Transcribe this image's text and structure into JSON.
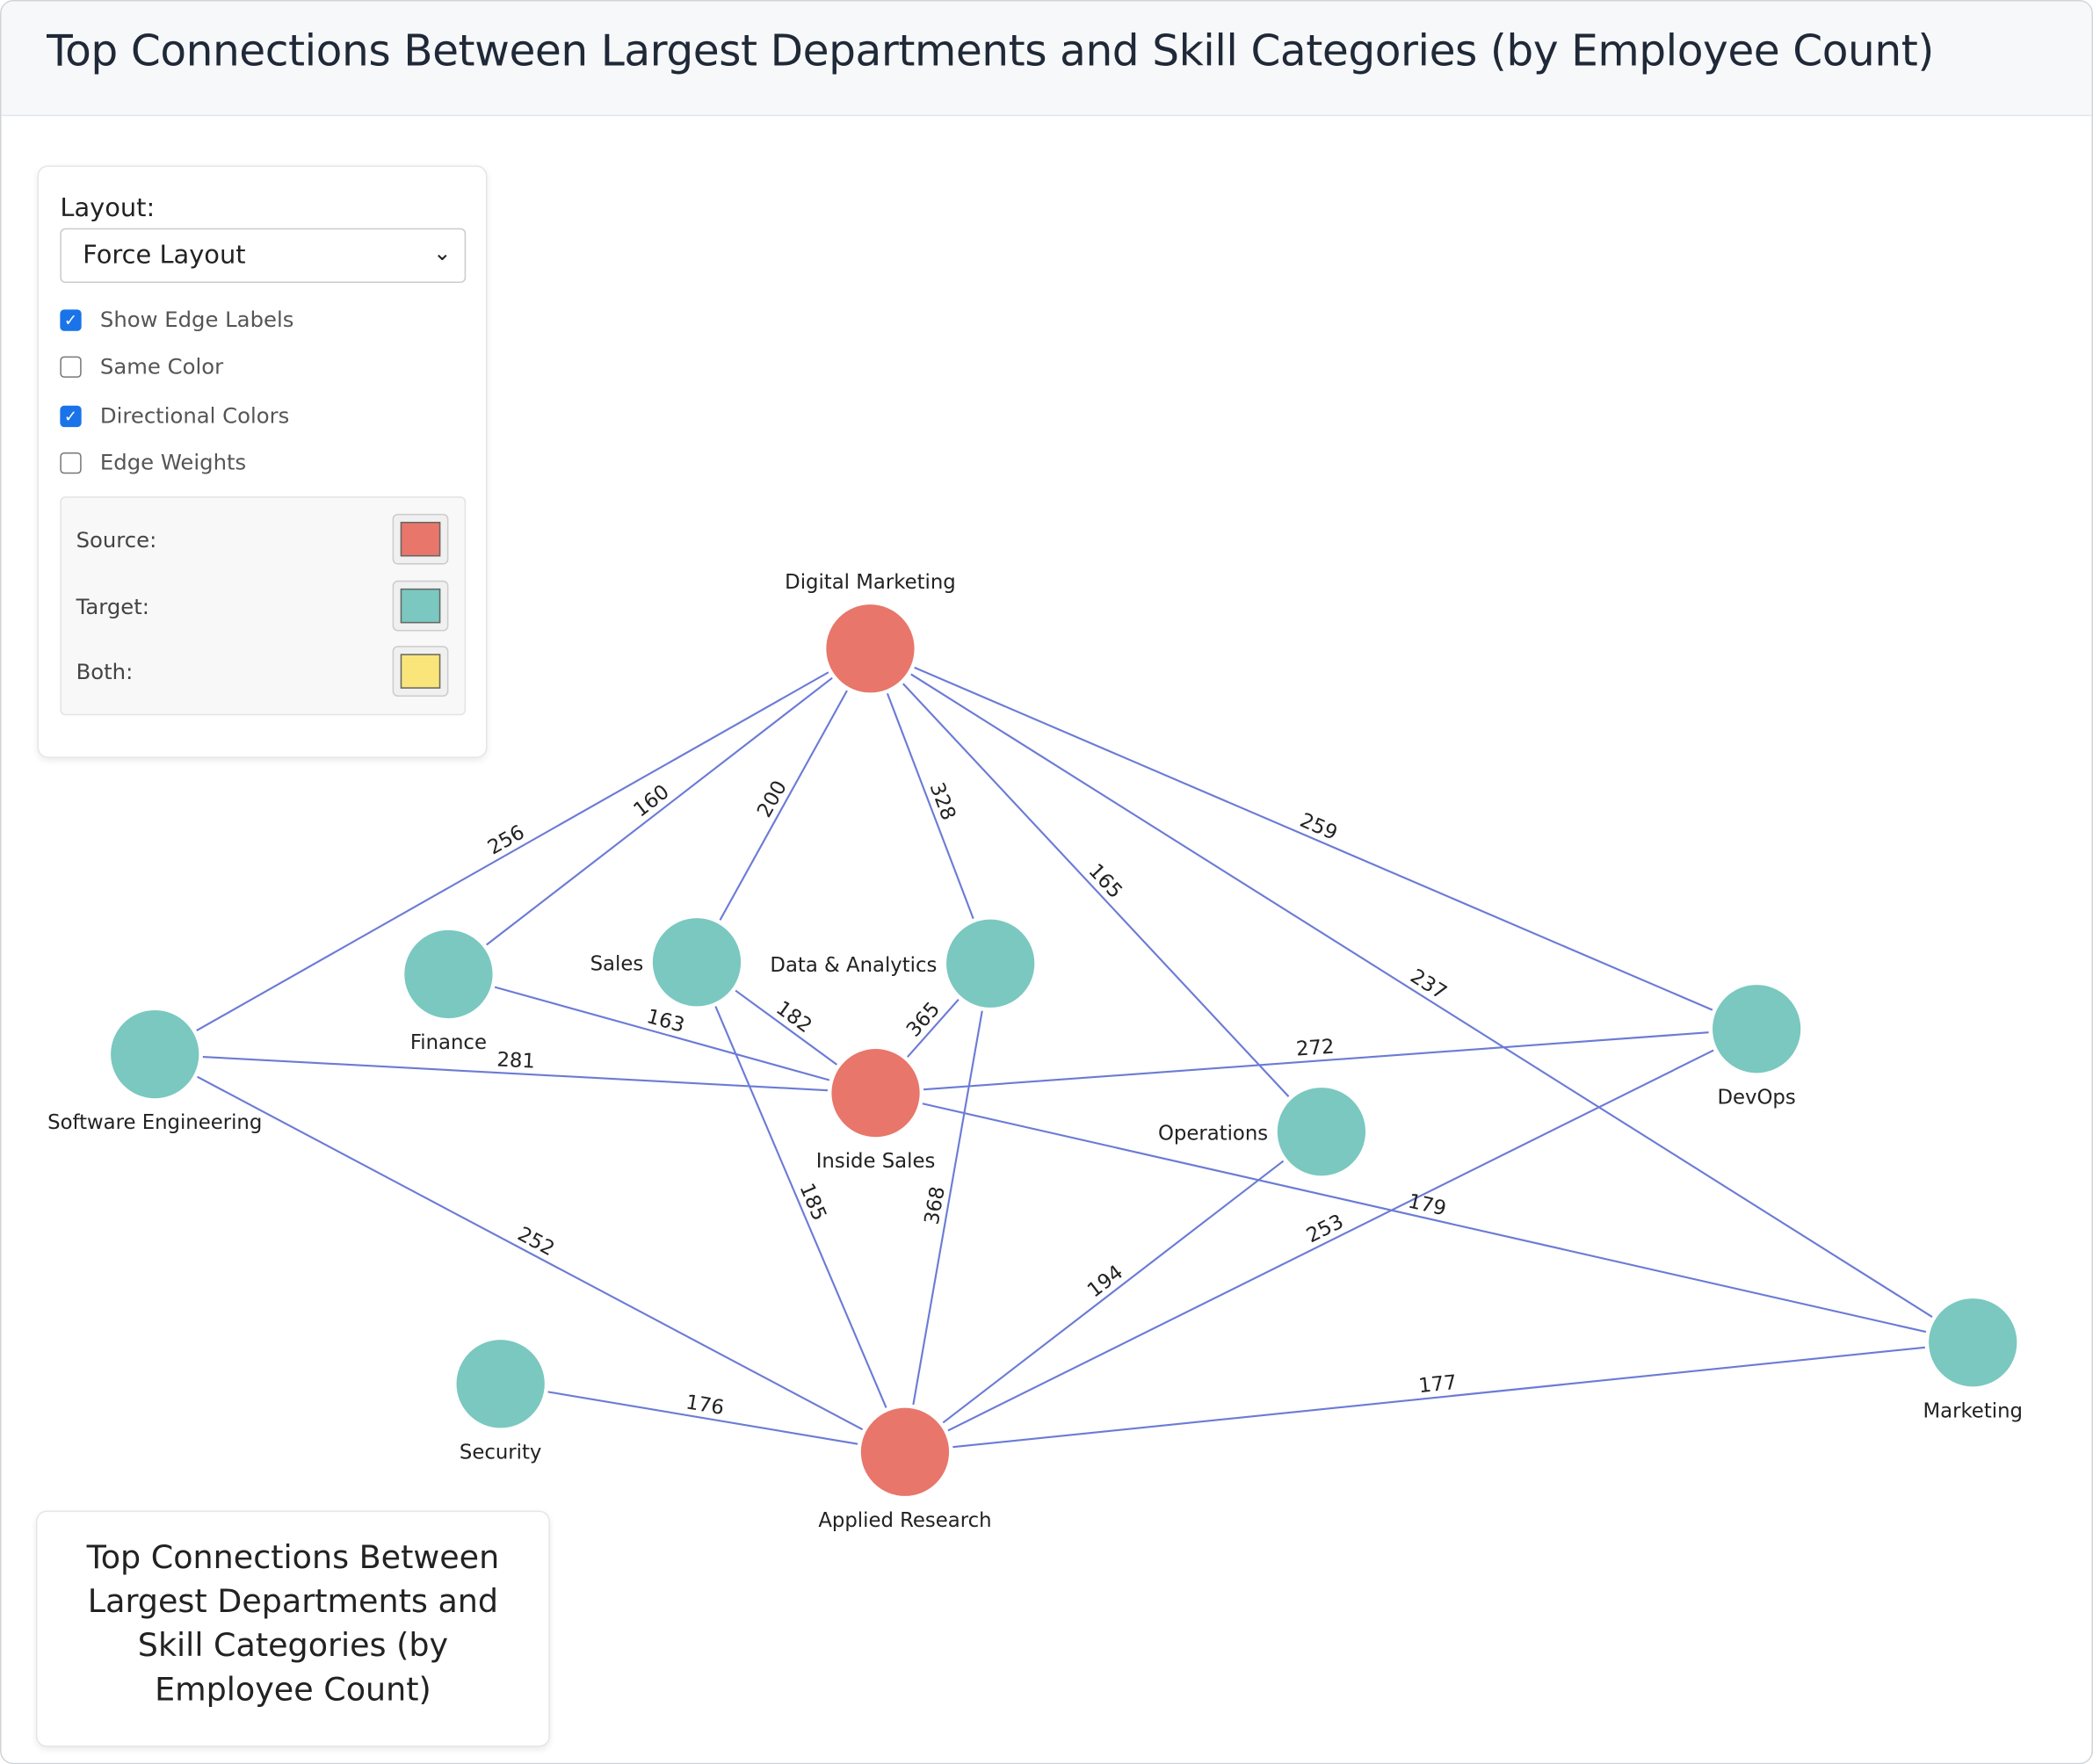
{
  "header": {
    "title": "Top Connections Between Largest Departments and Skill Categories (by Employee Count)"
  },
  "controls": {
    "layout_label": "Layout:",
    "layout_value": "Force Layout",
    "checkboxes": [
      {
        "label": "Show Edge Labels",
        "checked": true
      },
      {
        "label": "Same Color",
        "checked": false
      },
      {
        "label": "Directional Colors",
        "checked": true
      },
      {
        "label": "Edge Weights",
        "checked": false
      }
    ],
    "legend": [
      {
        "label": "Source:",
        "color": "#e8766b"
      },
      {
        "label": "Target:",
        "color": "#7ac8c0"
      },
      {
        "label": "Both:",
        "color": "#f9e57a"
      }
    ]
  },
  "caption": "Top Connections Between Largest Departments and Skill Categories (by Employee Count)",
  "colors": {
    "source": "#e8766b",
    "target": "#7ac8c0",
    "edge": "#6b7bd6"
  },
  "graph": {
    "nodes": [
      {
        "id": "Digital Marketing",
        "role": "source"
      },
      {
        "id": "Inside Sales",
        "role": "source"
      },
      {
        "id": "Applied Research",
        "role": "source"
      },
      {
        "id": "Software Engineering",
        "role": "target"
      },
      {
        "id": "Finance",
        "role": "target"
      },
      {
        "id": "Sales",
        "role": "target"
      },
      {
        "id": "Data & Analytics",
        "role": "target"
      },
      {
        "id": "DevOps",
        "role": "target"
      },
      {
        "id": "Operations",
        "role": "target"
      },
      {
        "id": "Marketing",
        "role": "target"
      },
      {
        "id": "Security",
        "role": "target"
      }
    ],
    "edges": [
      {
        "source": "Digital Marketing",
        "target": "Software Engineering",
        "value": 256
      },
      {
        "source": "Digital Marketing",
        "target": "Finance",
        "value": 160
      },
      {
        "source": "Digital Marketing",
        "target": "Sales",
        "value": 200
      },
      {
        "source": "Digital Marketing",
        "target": "Data & Analytics",
        "value": 328
      },
      {
        "source": "Digital Marketing",
        "target": "Operations",
        "value": 165
      },
      {
        "source": "Digital Marketing",
        "target": "Marketing",
        "value": 237
      },
      {
        "source": "Digital Marketing",
        "target": "DevOps",
        "value": 259
      },
      {
        "source": "Inside Sales",
        "target": "Finance",
        "value": 163
      },
      {
        "source": "Inside Sales",
        "target": "Sales",
        "value": 182
      },
      {
        "source": "Inside Sales",
        "target": "Data & Analytics",
        "value": 365
      },
      {
        "source": "Inside Sales",
        "target": "Software Engineering",
        "value": 281
      },
      {
        "source": "Inside Sales",
        "target": "DevOps",
        "value": 272
      },
      {
        "source": "Inside Sales",
        "target": "Marketing",
        "value": 179
      },
      {
        "source": "Applied Research",
        "target": "Software Engineering",
        "value": 252
      },
      {
        "source": "Applied Research",
        "target": "Sales",
        "value": 185
      },
      {
        "source": "Applied Research",
        "target": "Data & Analytics",
        "value": 368
      },
      {
        "source": "Applied Research",
        "target": "Operations",
        "value": 194
      },
      {
        "source": "Applied Research",
        "target": "DevOps",
        "value": 253
      },
      {
        "source": "Applied Research",
        "target": "Marketing",
        "value": 177
      },
      {
        "source": "Applied Research",
        "target": "Security",
        "value": 176
      }
    ]
  }
}
